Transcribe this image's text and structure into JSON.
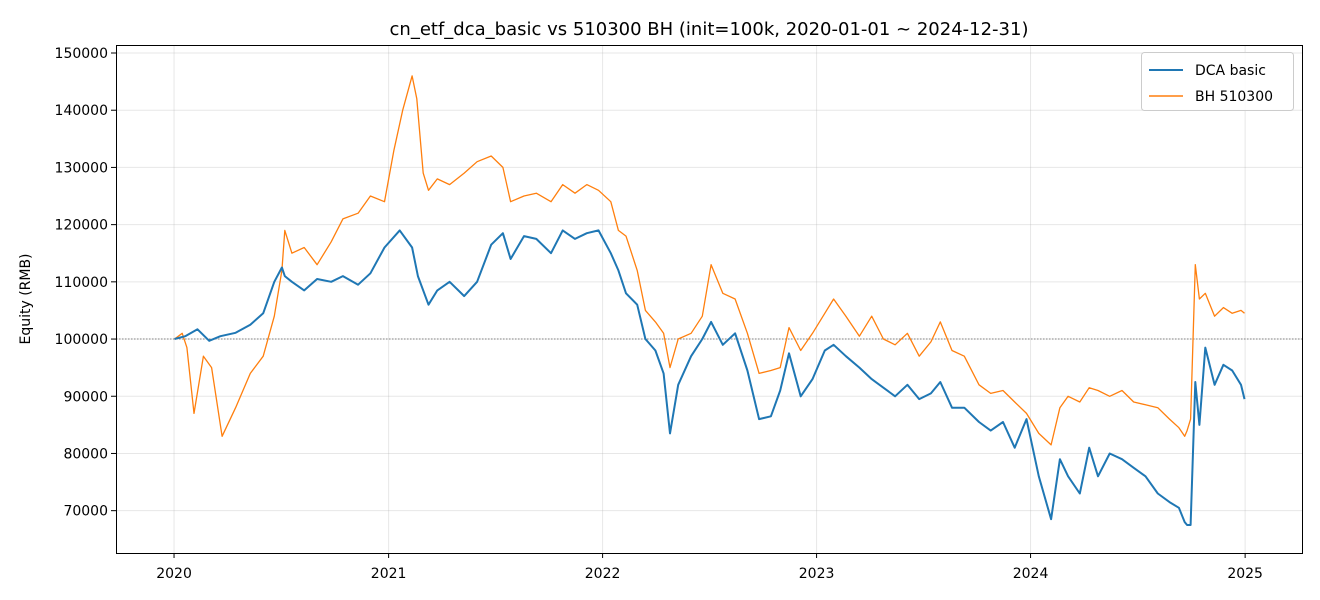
{
  "chart_data": {
    "type": "line",
    "title": "cn_etf_dca_basic vs 510300 BH (init=100k, 2020-01-01 ~ 2024-12-31)",
    "xlabel": "",
    "ylabel": "Equity (RMB)",
    "xlim": [
      "2019-09-24",
      "2025-04-08"
    ],
    "ylim": [
      62600,
      151400
    ],
    "x_ticks": [
      "2020-01-01",
      "2021-01-01",
      "2022-01-01",
      "2023-01-01",
      "2024-01-01",
      "2025-01-01"
    ],
    "x_tick_labels": [
      "2020",
      "2021",
      "2022",
      "2023",
      "2024",
      "2025"
    ],
    "y_ticks": [
      70000,
      80000,
      90000,
      100000,
      110000,
      120000,
      130000,
      140000,
      150000
    ],
    "y_tick_labels": [
      "70000",
      "80000",
      "90000",
      "100000",
      "110000",
      "120000",
      "130000",
      "140000",
      "150000"
    ],
    "grid": true,
    "reference_line": 100000,
    "legend_position": "top-right",
    "series": [
      {
        "name": "DCA basic",
        "color": "#1f77b4",
        "x": [
          "2020-01-02",
          "2020-01-20",
          "2020-02-10",
          "2020-03-01",
          "2020-03-20",
          "2020-04-15",
          "2020-05-10",
          "2020-06-01",
          "2020-06-20",
          "2020-07-03",
          "2020-07-08",
          "2020-07-20",
          "2020-08-10",
          "2020-09-01",
          "2020-09-25",
          "2020-10-15",
          "2020-11-10",
          "2020-12-01",
          "2020-12-25",
          "2021-01-20",
          "2021-02-10",
          "2021-02-20",
          "2021-03-10",
          "2021-03-25",
          "2021-04-15",
          "2021-05-10",
          "2021-06-01",
          "2021-06-25",
          "2021-07-15",
          "2021-07-28",
          "2021-08-20",
          "2021-09-10",
          "2021-10-05",
          "2021-10-25",
          "2021-11-15",
          "2021-12-05",
          "2021-12-25",
          "2022-01-15",
          "2022-01-28",
          "2022-02-10",
          "2022-03-01",
          "2022-03-15",
          "2022-04-01",
          "2022-04-15",
          "2022-04-26",
          "2022-05-10",
          "2022-06-01",
          "2022-06-20",
          "2022-07-05",
          "2022-07-25",
          "2022-08-15",
          "2022-09-05",
          "2022-09-25",
          "2022-10-15",
          "2022-10-31",
          "2022-11-15",
          "2022-12-05",
          "2022-12-25",
          "2023-01-15",
          "2023-01-30",
          "2023-02-20",
          "2023-03-15",
          "2023-04-05",
          "2023-04-25",
          "2023-05-15",
          "2023-06-05",
          "2023-06-25",
          "2023-07-15",
          "2023-07-31",
          "2023-08-20",
          "2023-09-10",
          "2023-10-05",
          "2023-10-25",
          "2023-11-15",
          "2023-12-05",
          "2023-12-25",
          "2024-01-15",
          "2024-02-05",
          "2024-02-20",
          "2024-03-05",
          "2024-03-25",
          "2024-04-10",
          "2024-04-25",
          "2024-05-15",
          "2024-06-05",
          "2024-06-25",
          "2024-07-15",
          "2024-08-05",
          "2024-08-25",
          "2024-09-10",
          "2024-09-20",
          "2024-09-24",
          "2024-09-30",
          "2024-10-08",
          "2024-10-15",
          "2024-10-25",
          "2024-11-10",
          "2024-11-25",
          "2024-12-10",
          "2024-12-25",
          "2024-12-31"
        ],
        "y": [
          100000,
          100500,
          101700,
          99700,
          100500,
          101100,
          102500,
          104500,
          110000,
          112500,
          111000,
          110000,
          108500,
          110500,
          110000,
          111000,
          109500,
          111500,
          116000,
          119000,
          116000,
          111000,
          106000,
          108500,
          110000,
          107500,
          110000,
          116500,
          118500,
          114000,
          118000,
          117500,
          115000,
          119000,
          117500,
          118500,
          119000,
          115000,
          112000,
          108000,
          106000,
          100000,
          98000,
          94000,
          83500,
          92000,
          97000,
          100000,
          103000,
          99000,
          101000,
          94500,
          86000,
          86500,
          91000,
          97500,
          90000,
          93000,
          98000,
          99000,
          97000,
          95000,
          93000,
          91500,
          90000,
          92000,
          89500,
          90500,
          92500,
          88000,
          88000,
          85500,
          84000,
          85500,
          81000,
          86000,
          76000,
          68500,
          79000,
          76000,
          73000,
          81000,
          76000,
          80000,
          79000,
          77500,
          76000,
          73000,
          71500,
          70500,
          68000,
          67500,
          67500,
          92500,
          85000,
          98500,
          92000,
          95500,
          94500,
          92000,
          89500
        ]
      },
      {
        "name": "BH 510300",
        "color": "#ff7f0e",
        "x": [
          "2020-01-02",
          "2020-01-15",
          "2020-01-23",
          "2020-02-04",
          "2020-02-20",
          "2020-03-05",
          "2020-03-23",
          "2020-04-15",
          "2020-05-10",
          "2020-06-01",
          "2020-06-20",
          "2020-07-03",
          "2020-07-08",
          "2020-07-20",
          "2020-08-10",
          "2020-09-01",
          "2020-09-25",
          "2020-10-15",
          "2020-11-10",
          "2020-12-01",
          "2020-12-25",
          "2021-01-10",
          "2021-01-25",
          "2021-02-10",
          "2021-02-18",
          "2021-03-01",
          "2021-03-10",
          "2021-03-25",
          "2021-04-15",
          "2021-05-10",
          "2021-06-01",
          "2021-06-25",
          "2021-07-15",
          "2021-07-28",
          "2021-08-20",
          "2021-09-10",
          "2021-10-05",
          "2021-10-25",
          "2021-11-15",
          "2021-12-05",
          "2021-12-25",
          "2022-01-15",
          "2022-01-28",
          "2022-02-10",
          "2022-03-01",
          "2022-03-15",
          "2022-04-01",
          "2022-04-15",
          "2022-04-26",
          "2022-05-10",
          "2022-06-01",
          "2022-06-20",
          "2022-07-05",
          "2022-07-25",
          "2022-08-15",
          "2022-09-05",
          "2022-09-25",
          "2022-10-15",
          "2022-10-31",
          "2022-11-15",
          "2022-12-05",
          "2022-12-25",
          "2023-01-15",
          "2023-01-30",
          "2023-02-20",
          "2023-03-15",
          "2023-04-05",
          "2023-04-25",
          "2023-05-15",
          "2023-06-05",
          "2023-06-25",
          "2023-07-15",
          "2023-07-31",
          "2023-08-20",
          "2023-09-10",
          "2023-10-05",
          "2023-10-25",
          "2023-11-15",
          "2023-12-05",
          "2023-12-25",
          "2024-01-15",
          "2024-02-05",
          "2024-02-20",
          "2024-03-05",
          "2024-03-25",
          "2024-04-10",
          "2024-04-25",
          "2024-05-15",
          "2024-06-05",
          "2024-06-25",
          "2024-07-15",
          "2024-08-05",
          "2024-08-25",
          "2024-09-10",
          "2024-09-20",
          "2024-09-24",
          "2024-09-30",
          "2024-10-08",
          "2024-10-15",
          "2024-10-25",
          "2024-11-10",
          "2024-11-25",
          "2024-12-10",
          "2024-12-25",
          "2024-12-31"
        ],
        "y": [
          100000,
          101000,
          98500,
          87000,
          97000,
          95000,
          83000,
          88000,
          94000,
          97000,
          104000,
          112000,
          119000,
          115000,
          116000,
          113000,
          117000,
          121000,
          122000,
          125000,
          124000,
          133000,
          140000,
          146000,
          142000,
          129000,
          126000,
          128000,
          127000,
          129000,
          131000,
          132000,
          130000,
          124000,
          125000,
          125500,
          124000,
          127000,
          125500,
          127000,
          126000,
          124000,
          119000,
          118000,
          112000,
          105000,
          103000,
          101000,
          95000,
          100000,
          101000,
          104000,
          113000,
          108000,
          107000,
          101000,
          94000,
          94500,
          95000,
          102000,
          98000,
          101000,
          104500,
          107000,
          104000,
          100500,
          104000,
          100000,
          99000,
          101000,
          97000,
          99500,
          103000,
          98000,
          97000,
          92000,
          90500,
          91000,
          89000,
          87000,
          83500,
          81500,
          88000,
          90000,
          89000,
          91500,
          91000,
          90000,
          91000,
          89000,
          88500,
          88000,
          86000,
          84500,
          83000,
          84000,
          86000,
          113000,
          107000,
          108000,
          104000,
          105500,
          104500,
          105000,
          104500
        ]
      }
    ]
  }
}
